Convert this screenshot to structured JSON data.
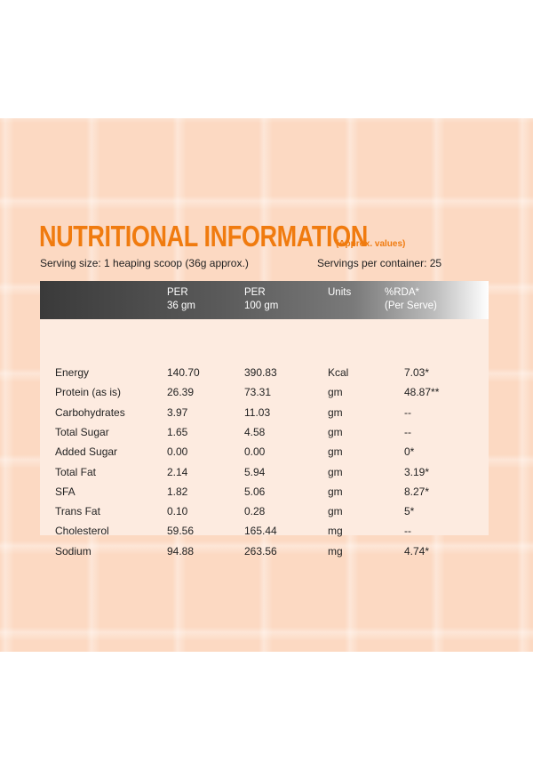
{
  "title": "NUTRITIONAL INFORMATION",
  "subtitle": "(Approx. values)",
  "serving_size": "Serving size: 1 heaping scoop (36g approx.)",
  "servings_per_container": "Servings per container: 25",
  "colors": {
    "accent": "#f07b0f",
    "background": "#fcd9c2",
    "table_bg": "#fdebe0",
    "header_dark": "#3a3a3a"
  },
  "table": {
    "headers": [
      {
        "line1": "",
        "line2": ""
      },
      {
        "line1": "PER",
        "line2": "36 gm"
      },
      {
        "line1": "PER",
        "line2": "100 gm"
      },
      {
        "line1": "Units",
        "line2": ""
      },
      {
        "line1": "%RDA*",
        "line2": "(Per Serve)"
      }
    ],
    "rows": [
      [
        "Energy",
        "140.70",
        "390.83",
        "Kcal",
        "7.03*"
      ],
      [
        "Protein (as is)",
        "26.39",
        "73.31",
        "gm",
        "48.87**"
      ],
      [
        "Carbohydrates",
        "3.97",
        "11.03",
        "gm",
        "--"
      ],
      [
        "Total Sugar",
        "1.65",
        "4.58",
        "gm",
        "--"
      ],
      [
        "Added Sugar",
        "0.00",
        "0.00",
        "gm",
        "0*"
      ],
      [
        "Total Fat",
        "2.14",
        "5.94",
        "gm",
        "3.19*"
      ],
      [
        "SFA",
        "1.82",
        "5.06",
        "gm",
        "8.27*"
      ],
      [
        "Trans Fat",
        "0.10",
        "0.28",
        "gm",
        "5*"
      ],
      [
        "Cholesterol",
        "59.56",
        "165.44",
        "mg",
        "--"
      ],
      [
        "Sodium",
        "94.88",
        "263.56",
        "mg",
        "4.74*"
      ]
    ]
  }
}
